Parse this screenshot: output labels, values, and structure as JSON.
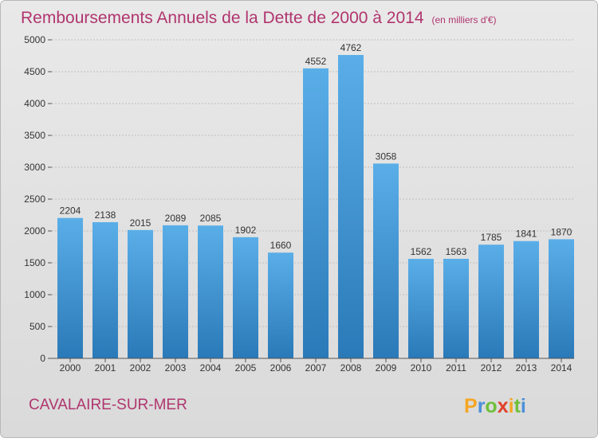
{
  "chart_data": {
    "type": "bar",
    "title": "Remboursements Annuels de la Dette de 2000 à 2014",
    "subtitle": "(en milliers d'€)",
    "categories": [
      "2000",
      "2001",
      "2002",
      "2003",
      "2004",
      "2005",
      "2006",
      "2007",
      "2008",
      "2009",
      "2010",
      "2011",
      "2012",
      "2013",
      "2014"
    ],
    "values": [
      2204,
      2138,
      2015,
      2089,
      2085,
      1902,
      1660,
      4552,
      4762,
      3058,
      1562,
      1563,
      1785,
      1841,
      1870
    ],
    "ylim": [
      0,
      5000
    ],
    "yticks": [
      0,
      500,
      1000,
      1500,
      2000,
      2500,
      3000,
      3500,
      4000,
      4500,
      5000
    ],
    "grid": true,
    "colors": {
      "title": "#b0356e",
      "bar_light": "#5aaee8",
      "bar_dark": "#2a79b8",
      "grid": "#bfbfbf",
      "background_top": "#e9e9e9",
      "background_bottom": "#dadada",
      "axis_text": "#333333"
    }
  },
  "footer": {
    "commune": "CAVALAIRE-SUR-MER",
    "brand": "Proxiti"
  }
}
